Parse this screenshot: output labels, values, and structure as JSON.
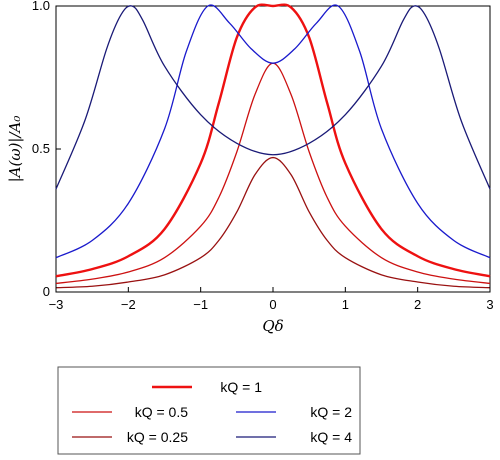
{
  "chart_data": {
    "type": "line",
    "title": "",
    "xlabel": "Qδ",
    "ylabel": "|A(ω)|/A₀",
    "xlim": [
      -3,
      3
    ],
    "ylim": [
      0,
      1
    ],
    "xticks": [
      -3,
      -2,
      -1,
      0,
      1,
      2,
      3
    ],
    "xtick_labels": [
      "−3",
      "−2",
      "−1",
      "0",
      "1",
      "2",
      "3"
    ],
    "yticks": [
      0,
      0.5,
      1
    ],
    "ytick_labels": [
      "0",
      "0.5",
      "1.0"
    ],
    "grid": false,
    "legend_position": "bottom",
    "series": [
      {
        "name": "kQ = 1",
        "color": "#ee1111",
        "stroke": 2.4,
        "x": [
          -3,
          -2.5,
          -2,
          -1.5,
          -1,
          -0.75,
          -0.5,
          -0.25,
          0,
          0.25,
          0.5,
          0.75,
          1,
          1.5,
          2,
          2.5,
          3
        ],
        "y": [
          0.055,
          0.08,
          0.125,
          0.22,
          0.45,
          0.66,
          0.89,
          0.995,
          1.0,
          0.995,
          0.89,
          0.66,
          0.45,
          0.22,
          0.125,
          0.08,
          0.055
        ]
      },
      {
        "name": "kQ = 0.5",
        "color": "#cc1111",
        "stroke": 1.3,
        "x": [
          -3,
          -2.5,
          -2,
          -1.5,
          -1,
          -0.75,
          -0.5,
          -0.25,
          0,
          0.25,
          0.5,
          0.75,
          1,
          1.5,
          2,
          2.5,
          3
        ],
        "y": [
          0.03,
          0.045,
          0.07,
          0.12,
          0.23,
          0.33,
          0.49,
          0.69,
          0.8,
          0.69,
          0.49,
          0.33,
          0.23,
          0.12,
          0.07,
          0.045,
          0.03
        ]
      },
      {
        "name": "kQ = 2",
        "color": "#1a1acc",
        "stroke": 1.3,
        "x": [
          -3,
          -2.5,
          -2,
          -1.5,
          -1.2,
          -0.9,
          -0.6,
          -0.3,
          0,
          0.3,
          0.6,
          0.9,
          1.2,
          1.5,
          2,
          2.5,
          3
        ],
        "y": [
          0.12,
          0.18,
          0.31,
          0.57,
          0.84,
          1.0,
          0.94,
          0.85,
          0.8,
          0.85,
          0.94,
          1.0,
          0.84,
          0.57,
          0.31,
          0.18,
          0.12
        ]
      },
      {
        "name": "kQ = 0.25",
        "color": "#991111",
        "stroke": 1.3,
        "x": [
          -3,
          -2.5,
          -2,
          -1.5,
          -1,
          -0.75,
          -0.5,
          -0.25,
          0,
          0.25,
          0.5,
          0.75,
          1,
          1.5,
          2,
          2.5,
          3
        ],
        "y": [
          0.015,
          0.02,
          0.035,
          0.06,
          0.12,
          0.18,
          0.28,
          0.41,
          0.47,
          0.41,
          0.28,
          0.18,
          0.12,
          0.06,
          0.035,
          0.02,
          0.015
        ]
      },
      {
        "name": "kQ = 4",
        "color": "#1a1a77",
        "stroke": 1.3,
        "x": [
          -3,
          -2.6,
          -2.3,
          -2.1,
          -1.95,
          -1.8,
          -1.5,
          -1,
          -0.5,
          0,
          0.5,
          1,
          1.5,
          1.8,
          1.95,
          2.1,
          2.3,
          2.6,
          3
        ],
        "y": [
          0.36,
          0.6,
          0.85,
          0.97,
          1.0,
          0.95,
          0.79,
          0.62,
          0.52,
          0.48,
          0.52,
          0.62,
          0.79,
          0.95,
          1.0,
          0.97,
          0.85,
          0.6,
          0.36
        ]
      }
    ]
  }
}
